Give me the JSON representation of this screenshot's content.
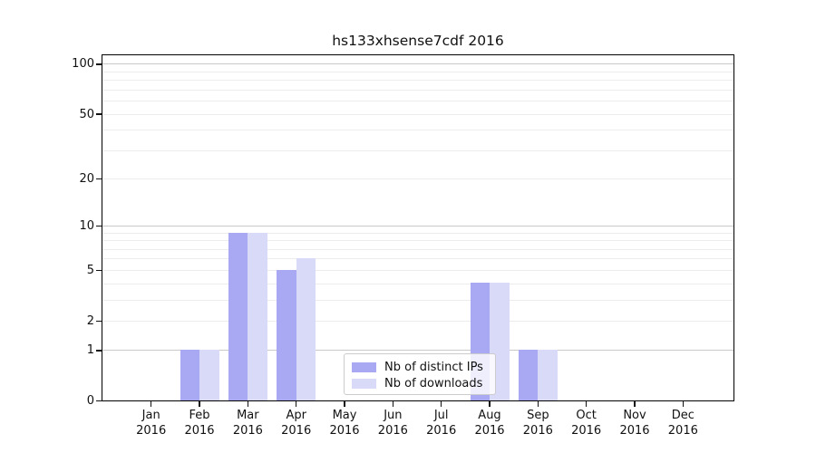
{
  "figure": {
    "background_color": "#ffffff",
    "frame_color": "#000000"
  },
  "chart_data": {
    "type": "bar",
    "title": "hs133xhsense7cdf 2016",
    "xlabel": "",
    "ylabel": "",
    "categories": [
      "Jan",
      "Feb",
      "Mar",
      "Apr",
      "May",
      "Jun",
      "Jul",
      "Aug",
      "Sep",
      "Oct",
      "Nov",
      "Dec"
    ],
    "category_year": "2016",
    "series": [
      {
        "name": "Nb of distinct IPs",
        "color": "#a8a8f3",
        "values": [
          0,
          1,
          9,
          5,
          0,
          0,
          0,
          4,
          1,
          0,
          0,
          0
        ]
      },
      {
        "name": "Nb of downloads",
        "color": "#d9d9f8",
        "values": [
          0,
          1,
          9,
          6,
          0,
          0,
          0,
          4,
          1,
          0,
          0,
          0
        ]
      }
    ],
    "yscale": "log1p",
    "ylim": [
      0,
      115
    ],
    "yticks": [
      0,
      1,
      2,
      5,
      10,
      20,
      50,
      100
    ],
    "major_gridlines": [
      1,
      10,
      100
    ],
    "minor_gridlines": [
      2,
      3,
      4,
      5,
      6,
      7,
      8,
      9,
      20,
      30,
      40,
      50,
      60,
      70,
      80,
      90
    ],
    "grid": true,
    "legend_position": "inside lower center",
    "grid_major_color": "#c9c9c9",
    "grid_minor_color": "#ececec"
  }
}
